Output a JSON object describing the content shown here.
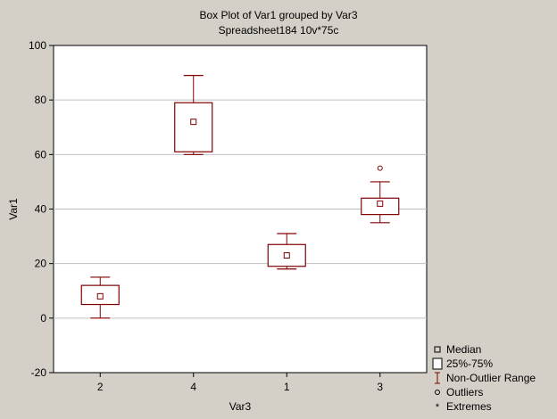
{
  "chart_data": {
    "type": "box",
    "title": "Box Plot of Var1 grouped by  Var3",
    "subtitle": "Spreadsheet184 10v*75c",
    "xlabel": "Var3",
    "ylabel": "Var1",
    "ylim": [
      -20,
      100
    ],
    "yticks": [
      -20,
      0,
      20,
      40,
      60,
      80,
      100
    ],
    "grid": true,
    "categories": [
      "2",
      "4",
      "1",
      "3"
    ],
    "boxes": [
      {
        "category": "2",
        "median": 8,
        "q1": 5,
        "q3": 12,
        "whisker_low": 0,
        "whisker_high": 15,
        "outliers": [],
        "extremes": []
      },
      {
        "category": "4",
        "median": 72,
        "q1": 61,
        "q3": 79,
        "whisker_low": 60,
        "whisker_high": 89,
        "outliers": [],
        "extremes": []
      },
      {
        "category": "1",
        "median": 23,
        "q1": 19,
        "q3": 27,
        "whisker_low": 18,
        "whisker_high": 31,
        "outliers": [],
        "extremes": []
      },
      {
        "category": "3",
        "median": 42,
        "q1": 38,
        "q3": 44,
        "whisker_low": 35,
        "whisker_high": 50,
        "outliers": [
          55
        ],
        "extremes": []
      }
    ],
    "legend": {
      "position": "bottom-right",
      "items": [
        {
          "symbol": "median",
          "label": "Median"
        },
        {
          "symbol": "box",
          "label": "25%-75%"
        },
        {
          "symbol": "whisker",
          "label": "Non-Outlier Range"
        },
        {
          "symbol": "outlier",
          "label": "Outliers"
        },
        {
          "symbol": "extreme",
          "label": "Extremes"
        }
      ]
    },
    "colors": {
      "background": "#d4d0c8",
      "plot_area": "#ffffff",
      "series": "#800000",
      "grid": "#c0c0c0",
      "axis": "#000000"
    }
  }
}
